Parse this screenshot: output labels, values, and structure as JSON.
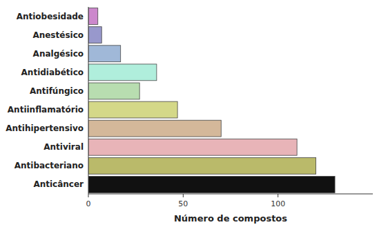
{
  "chart_data": {
    "type": "bar",
    "orientation": "horizontal",
    "categories": [
      "Anticâncer",
      "Antibacteriano",
      "Antiviral",
      "Antihipertensivo",
      "Antiinflamatório",
      "Antifúngico",
      "Antidiabético",
      "Analgésico",
      "Anestésico",
      "Antiobesidade"
    ],
    "values": [
      130,
      120,
      110,
      70,
      47,
      27,
      36,
      17,
      7,
      5
    ],
    "colors": [
      "#111111",
      "#baba6a",
      "#e8b4b8",
      "#d4b89a",
      "#d4d888",
      "#b8ddb0",
      "#b0eedc",
      "#a0b8d8",
      "#9898cc",
      "#cc88cc"
    ],
    "xlabel": "Número de compostos",
    "xlim": [
      0,
      150
    ],
    "xticks": [
      0,
      50,
      100
    ],
    "grid": false
  }
}
